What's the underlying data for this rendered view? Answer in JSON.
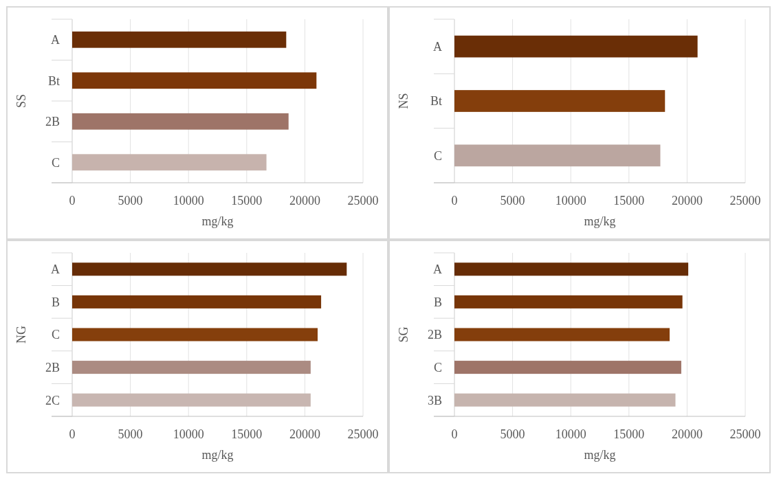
{
  "chart_data": [
    {
      "type": "bar",
      "orientation": "horizontal",
      "ylabel": "SS",
      "xlabel": "mg/kg",
      "categories": [
        "A",
        "Bt",
        "2B",
        "C"
      ],
      "values": [
        18400,
        21000,
        18600,
        16700
      ],
      "colors": [
        "#6a2e06",
        "#7c3709",
        "#9e7468",
        "#c7b3ad"
      ],
      "xlim": [
        0,
        25000
      ],
      "xticks": [
        0,
        5000,
        10000,
        15000,
        20000,
        25000
      ],
      "grid": "x"
    },
    {
      "type": "bar",
      "orientation": "horizontal",
      "ylabel": "NS",
      "xlabel": "mg/kg",
      "categories": [
        "A",
        "Bt",
        "C"
      ],
      "values": [
        20900,
        18100,
        17700
      ],
      "colors": [
        "#6a2e06",
        "#843e0c",
        "#bba6a0"
      ],
      "xlim": [
        0,
        25000
      ],
      "xticks": [
        0,
        5000,
        10000,
        15000,
        20000,
        25000
      ],
      "grid": "x"
    },
    {
      "type": "bar",
      "orientation": "horizontal",
      "ylabel": "NG",
      "xlabel": "mg/kg",
      "categories": [
        "A",
        "B",
        "C",
        "2B",
        "2C"
      ],
      "values": [
        23600,
        21400,
        21100,
        20500,
        20500
      ],
      "colors": [
        "#662c06",
        "#773508",
        "#853f0c",
        "#ab8b82",
        "#c8b6b1"
      ],
      "xlim": [
        0,
        25000
      ],
      "xticks": [
        0,
        5000,
        10000,
        15000,
        20000,
        25000
      ],
      "grid": "x"
    },
    {
      "type": "bar",
      "orientation": "horizontal",
      "ylabel": "SG",
      "xlabel": "mg/kg",
      "categories": [
        "A",
        "B",
        "2B",
        "C",
        "3B"
      ],
      "values": [
        20100,
        19600,
        18500,
        19500,
        19000
      ],
      "colors": [
        "#662c06",
        "#773508",
        "#843e0c",
        "#9e7468",
        "#c6b4ae"
      ],
      "xlim": [
        0,
        25000
      ],
      "xticks": [
        0,
        5000,
        10000,
        15000,
        20000,
        25000
      ],
      "grid": "x"
    }
  ]
}
